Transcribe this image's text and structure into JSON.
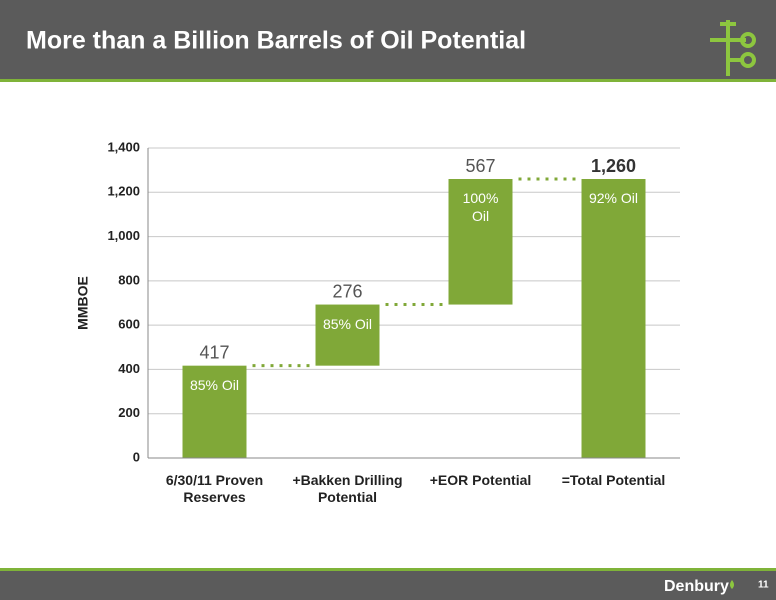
{
  "header": {
    "title": "More than a Billion Barrels of Oil Potential"
  },
  "footer": {
    "brand": "Denbury",
    "page": "11"
  },
  "chart_data": {
    "type": "waterfall",
    "categories": [
      "6/30/11 Proven Reserves",
      "+Bakken Drilling Potential",
      "+EOR Potential",
      "=Total Potential"
    ],
    "values": [
      417,
      276,
      567,
      1260
    ],
    "value_labels": [
      "417",
      "276",
      "567",
      "1,260"
    ],
    "annotations": [
      "85% Oil",
      "85% Oil",
      "100% Oil",
      "92% Oil"
    ],
    "color": "#80a838",
    "ylabel": "MMBOE",
    "ylim": [
      0,
      1400
    ],
    "yticks": [
      0,
      200,
      400,
      600,
      800,
      {
        "value": 1000,
        "label": "1,000"
      },
      {
        "value": 1200,
        "label": "1,200"
      },
      {
        "value": 1400,
        "label": "1,400"
      }
    ],
    "grid": true
  }
}
